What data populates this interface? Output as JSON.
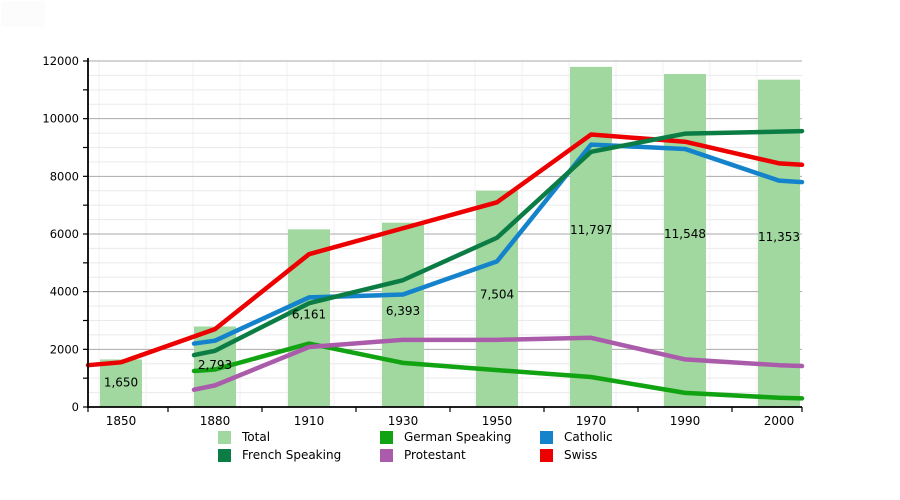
{
  "chart_data": {
    "type": "bar+line",
    "title": "",
    "categories": [
      "1850",
      "1880",
      "1910",
      "1930",
      "1950",
      "1970",
      "1990",
      "2000"
    ],
    "ylim": [
      0,
      12000
    ],
    "grid": {
      "minor_step": 500,
      "major_step": 2000,
      "vertical_minor": true
    },
    "y_tick_labels": [
      "0",
      "2000",
      "4000",
      "6000",
      "8000",
      "10000",
      "12000"
    ],
    "bars": {
      "name": "Total",
      "color": "#a0d8a0",
      "values": [
        1650,
        2793,
        6161,
        6393,
        7504,
        11797,
        11548,
        11353
      ],
      "labels": [
        "1,650",
        "2,793",
        "6,161",
        "6,393",
        "7,504",
        "11,797",
        "11,548",
        "11,353"
      ]
    },
    "series": [
      {
        "name": "German Speaking",
        "color": "#12a312",
        "values": [
          null,
          1300,
          2200,
          1530,
          1280,
          1040,
          490,
          320
        ],
        "edge_left": 1250,
        "edge_right": 300
      },
      {
        "name": "Protestant",
        "color": "#aa5caa",
        "values": [
          null,
          750,
          2080,
          2330,
          2330,
          2400,
          1650,
          1450
        ],
        "edge_left": 600,
        "edge_right": 1420
      },
      {
        "name": "Catholic",
        "color": "#1583cb",
        "values": [
          null,
          2300,
          3800,
          3900,
          5050,
          9100,
          8950,
          7850
        ],
        "edge_left": 2200,
        "edge_right": 7800
      },
      {
        "name": "Swiss",
        "color": "#ed0000",
        "values": [
          1550,
          2700,
          5300,
          6200,
          7100,
          9450,
          9200,
          8450
        ],
        "edge_left": 1450,
        "edge_right": 8400
      },
      {
        "name": "French Speaking",
        "color": "#0b7d44",
        "values": [
          null,
          1950,
          3600,
          4400,
          5870,
          8850,
          9480,
          9550
        ],
        "edge_left": 1800,
        "edge_right": 9570
      }
    ],
    "legend": {
      "position": "bottom",
      "items": [
        {
          "label": "Total",
          "color": "#a0d8a0"
        },
        {
          "label": "German Speaking",
          "color": "#12a312"
        },
        {
          "label": "Catholic",
          "color": "#1583cb"
        },
        {
          "label": "French Speaking",
          "color": "#0b7d44"
        },
        {
          "label": "Protestant",
          "color": "#aa5caa"
        },
        {
          "label": "Swiss",
          "color": "#ed0000"
        }
      ]
    }
  }
}
